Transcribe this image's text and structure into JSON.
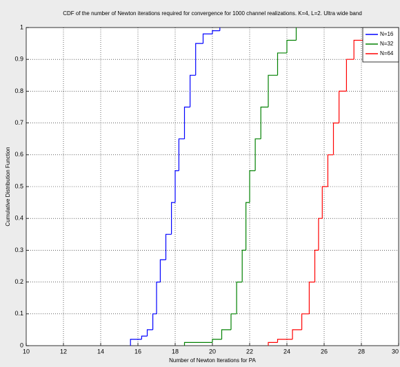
{
  "chart_data": {
    "type": "stairs",
    "title": "CDF of the number of Newton iterations required for convergence for 1000 channel realizations.  K=4,  L=2. Ultra wide band",
    "x_label": "Number of Newton Iterations for PA",
    "y_label": "Cumulative Distribution Function",
    "xlim": [
      10,
      30
    ],
    "xticks": [
      10,
      12,
      14,
      16,
      18,
      20,
      22,
      24,
      26,
      28,
      30
    ],
    "ylim": [
      0,
      1
    ],
    "yticks": [
      0,
      0.1,
      0.2,
      0.3,
      0.4,
      0.5,
      0.6,
      0.7,
      0.8,
      0.9,
      1
    ],
    "grid": true,
    "legend": "upper right",
    "series": [
      {
        "name": "N=16",
        "color": "#0000ff",
        "x": [
          15.6,
          16.2,
          16.5,
          16.8,
          17.0,
          17.2,
          17.5,
          17.8,
          18.0,
          18.2,
          18.5,
          18.8,
          19.1,
          19.5,
          20.0,
          20.4
        ],
        "values": [
          0.02,
          0.03,
          0.05,
          0.1,
          0.2,
          0.27,
          0.35,
          0.45,
          0.55,
          0.65,
          0.75,
          0.85,
          0.95,
          0.98,
          0.99,
          1
        ]
      },
      {
        "name": "N=32",
        "color": "#008000",
        "x": [
          18.5,
          20.0,
          20.5,
          21.0,
          21.3,
          21.6,
          21.8,
          22.0,
          22.3,
          22.6,
          23.0,
          23.5,
          24.0,
          24.5
        ],
        "values": [
          0.01,
          0.02,
          0.05,
          0.1,
          0.2,
          0.3,
          0.45,
          0.55,
          0.65,
          0.75,
          0.85,
          0.92,
          0.96,
          1
        ]
      },
      {
        "name": "N=64",
        "color": "#ff0000",
        "x": [
          23.0,
          23.5,
          24.3,
          24.8,
          25.2,
          25.5,
          25.7,
          25.9,
          26.2,
          26.5,
          26.8,
          27.2,
          27.6,
          28.3
        ],
        "values": [
          0.01,
          0.02,
          0.05,
          0.1,
          0.2,
          0.3,
          0.4,
          0.5,
          0.6,
          0.7,
          0.8,
          0.9,
          0.96,
          1
        ]
      }
    ]
  }
}
